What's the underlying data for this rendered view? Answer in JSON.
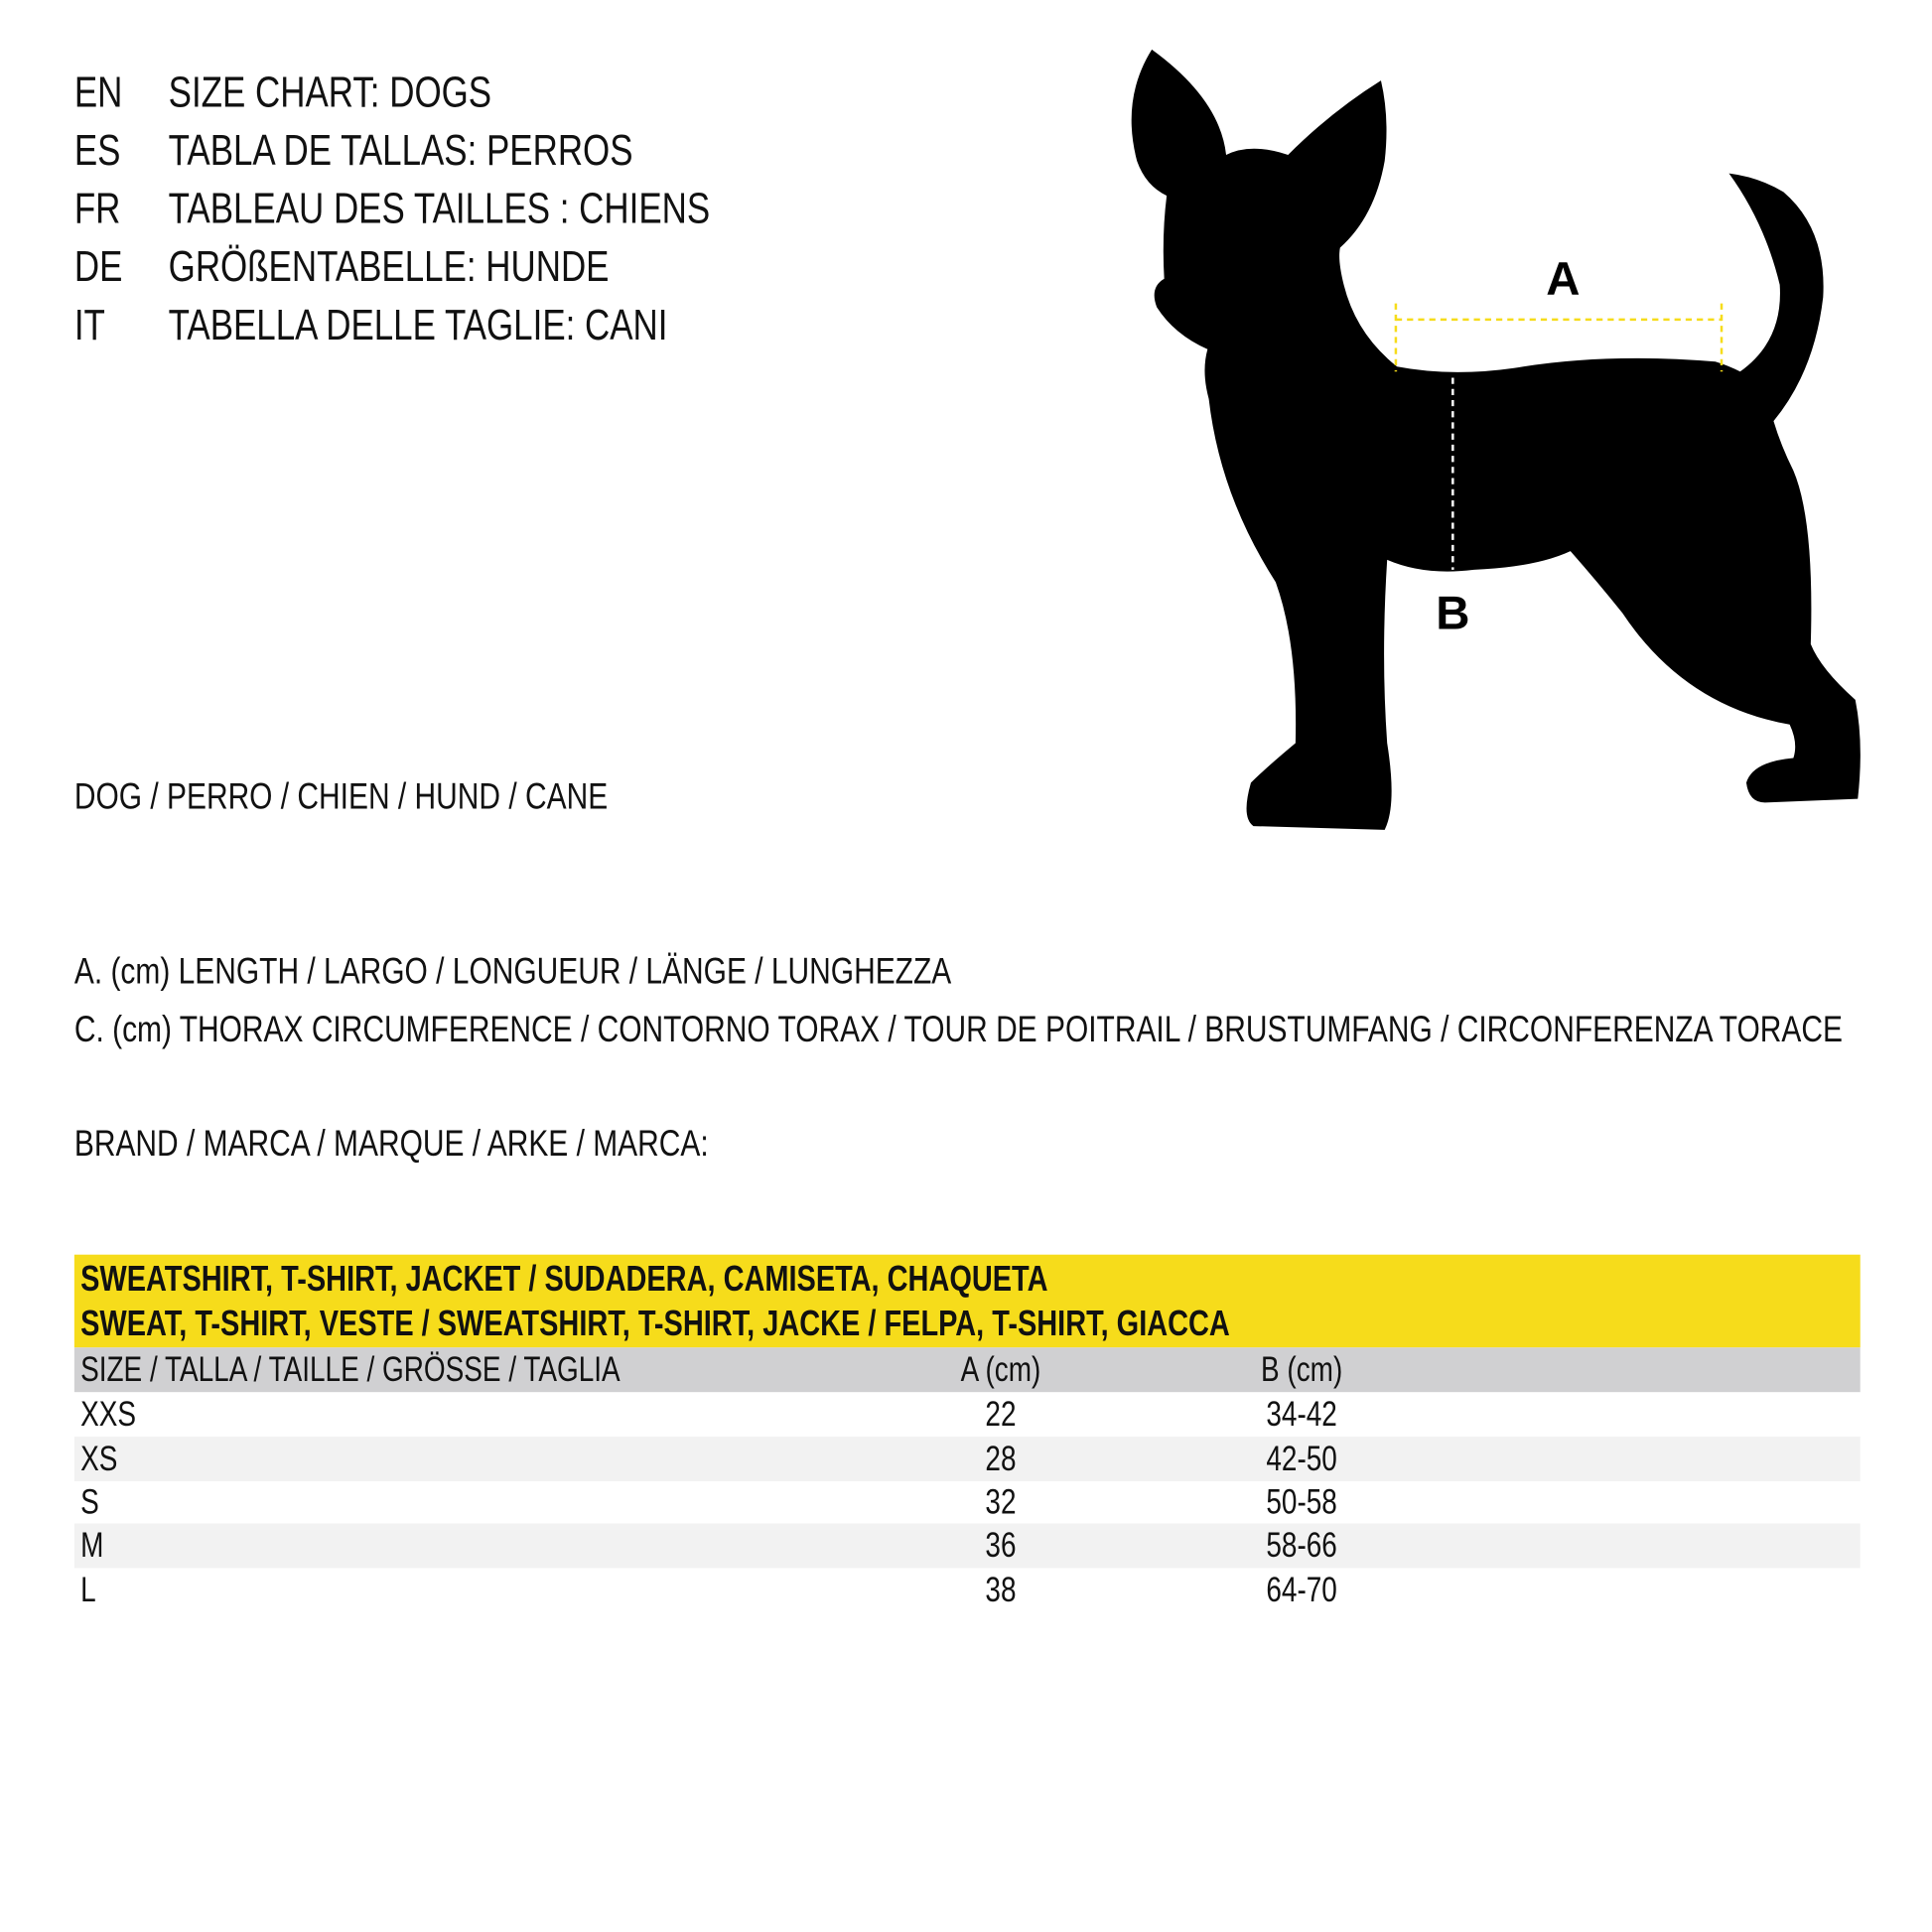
{
  "titles": [
    {
      "code": "EN",
      "text": "SIZE CHART: DOGS"
    },
    {
      "code": "ES",
      "text": "TABLA DE TALLAS: PERROS"
    },
    {
      "code": "FR",
      "text": "TABLEAU DES TAILLES : CHIENS"
    },
    {
      "code": "DE",
      "text": "GRÖßENTABELLE: HUNDE"
    },
    {
      "code": "IT",
      "text": "TABELLA DELLE TAGLIE: CANI"
    }
  ],
  "animal_line": "DOG / PERRO / CHIEN / HUND / CANE",
  "legend": {
    "a": "A. (cm) LENGTH / LARGO / LONGUEUR / LÄNGE / LUNGHEZZA",
    "c": "C. (cm) THORAX CIRCUMFERENCE / CONTORNO TORAX / TOUR DE POITRAIL / BRUSTUMFANG / CIRCONFERENZA TORACE"
  },
  "brand_line": "BRAND / MARCA / MARQUE / ARKE / MARCA:",
  "diagram": {
    "label_a": "A",
    "label_b": "B",
    "measure_color": "#f6dc1b"
  },
  "table": {
    "title_lines": [
      "SWEATSHIRT, T-SHIRT, JACKET / SUDADERA, CAMISETA, CHAQUETA",
      "SWEAT, T-SHIRT, VESTE / SWEATSHIRT, T-SHIRT, JACKE / FELPA, T-SHIRT, GIACCA"
    ],
    "headers": [
      "SIZE / TALLA / TAILLE / GRÖSSE / TAGLIA",
      "A (cm)",
      "B (cm)"
    ],
    "rows": [
      [
        "XXS",
        "22",
        "34-42"
      ],
      [
        "XS",
        "28",
        "42-50"
      ],
      [
        "S",
        "32",
        "50-58"
      ],
      [
        "M",
        "36",
        "58-66"
      ],
      [
        "L",
        "38",
        "64-70"
      ]
    ],
    "header_color": "#f6dc1b"
  }
}
